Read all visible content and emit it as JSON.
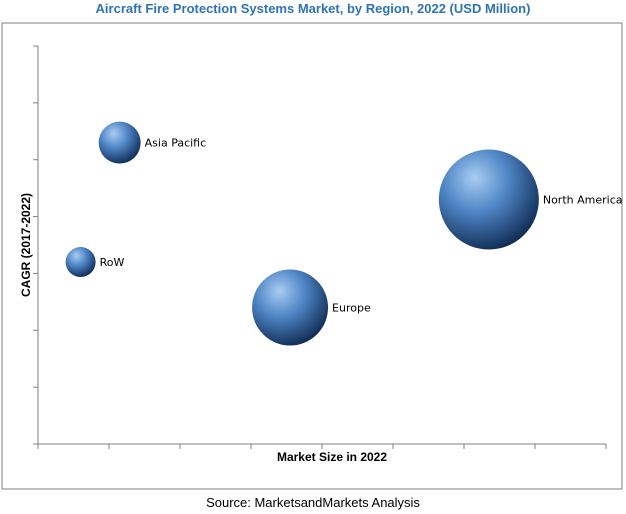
{
  "colors": {
    "title": "#2e74b5",
    "bubble_light": "#a9cdf2",
    "bubble_mid": "#4f86c6",
    "bubble_dark": "#0f2a52",
    "frame": "#7f7f7f",
    "axis": "#808080"
  },
  "source_text": "Source: MarketsandMarkets Analysis",
  "chart_data": {
    "type": "bubble",
    "title": "Aircraft Fire Protection Systems Market, by Region, 2022 (USD Million)",
    "xlabel": "Market Size in 2022",
    "ylabel": "CAGR (2017-2022)",
    "xlim": [
      0,
      8
    ],
    "ylim": [
      0,
      7
    ],
    "grid": false,
    "x_ticks": [
      0,
      1,
      2,
      3,
      4,
      5,
      6,
      7,
      8
    ],
    "y_ticks": [
      0,
      1,
      2,
      3,
      4,
      5,
      6,
      7
    ],
    "points": [
      {
        "label": "Asia Pacific",
        "x": 1.15,
        "y": 5.3,
        "size": 0.42
      },
      {
        "label": "North America",
        "x": 6.35,
        "y": 4.3,
        "size": 1.0
      },
      {
        "label": "RoW",
        "x": 0.6,
        "y": 3.2,
        "size": 0.3
      },
      {
        "label": "Europe",
        "x": 3.55,
        "y": 2.4,
        "size": 0.76
      }
    ]
  }
}
